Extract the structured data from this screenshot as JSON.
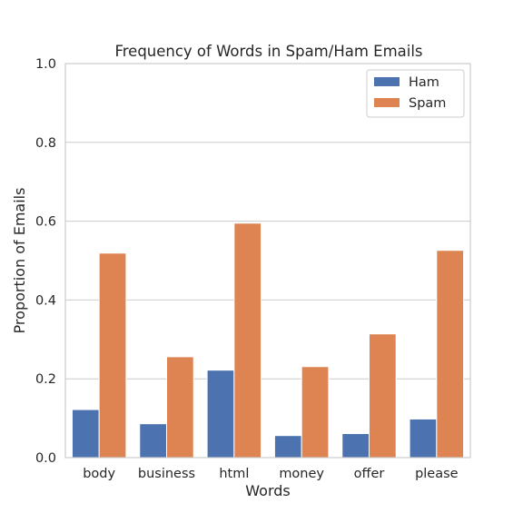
{
  "chart_data": {
    "type": "bar",
    "title": "Frequency of Words in Spam/Ham Emails",
    "xlabel": "Words",
    "ylabel": "Proportion of Emails",
    "ylim": [
      0,
      1.0
    ],
    "yticks": [
      0.0,
      0.2,
      0.4,
      0.6,
      0.8,
      1.0
    ],
    "ytick_labels": [
      "0.0",
      "0.2",
      "0.4",
      "0.6",
      "0.8",
      "1.0"
    ],
    "grid": true,
    "legend_position": "top-right",
    "categories": [
      "body",
      "business",
      "html",
      "money",
      "offer",
      "please"
    ],
    "series": [
      {
        "name": "Ham",
        "color": "#4c72b0",
        "values": [
          0.122,
          0.086,
          0.222,
          0.056,
          0.061,
          0.098
        ]
      },
      {
        "name": "Spam",
        "color": "#dd8452",
        "values": [
          0.519,
          0.256,
          0.595,
          0.231,
          0.314,
          0.526
        ]
      }
    ]
  }
}
